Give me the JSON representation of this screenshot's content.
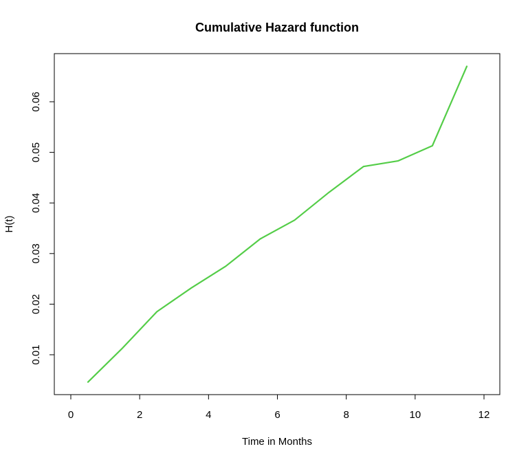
{
  "chart_data": {
    "type": "line",
    "title": "Cumulative Hazard function",
    "xlabel": "Time in Months",
    "ylabel": "H(t)",
    "xlim": [
      0,
      12
    ],
    "ylim": [
      0.003,
      0.069
    ],
    "xticks": [
      0,
      2,
      4,
      6,
      8,
      10,
      12
    ],
    "yticks": [
      0.01,
      0.02,
      0.03,
      0.04,
      0.05,
      0.06
    ],
    "ytick_labels": [
      "0.01",
      "0.02",
      "0.03",
      "0.04",
      "0.05",
      "0.06"
    ],
    "grid": false,
    "legend": "none",
    "series": [
      {
        "color": "#54cd48",
        "x": [
          0.5,
          1.5,
          2.5,
          3.5,
          4.5,
          5.5,
          6.5,
          7.5,
          8.5,
          9.5,
          10.5,
          11.5
        ],
        "y": [
          0.0046,
          0.0113,
          0.0185,
          0.0232,
          0.0275,
          0.0329,
          0.0366,
          0.0421,
          0.0472,
          0.0483,
          0.0513,
          0.067
        ]
      }
    ]
  }
}
